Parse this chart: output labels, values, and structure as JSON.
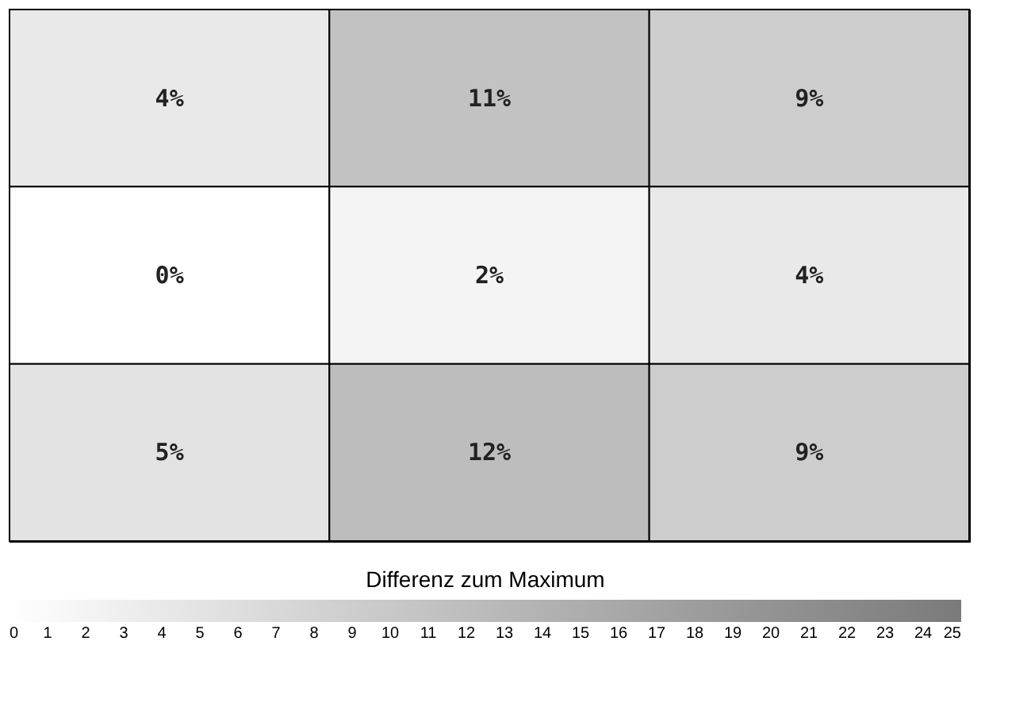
{
  "chart_data": {
    "type": "heatmap",
    "categories": [
      null,
      null,
      null
    ],
    "y_categories": [
      null,
      null,
      null
    ],
    "cells": [
      [
        4,
        11,
        9
      ],
      [
        0,
        2,
        4
      ],
      [
        5,
        12,
        9
      ]
    ],
    "cell_labels": [
      [
        "4%",
        "11%",
        "9%"
      ],
      [
        "0%",
        "2%",
        "4%"
      ],
      [
        "5%",
        "12%",
        "9%"
      ]
    ],
    "clim": [
      0,
      25
    ],
    "cticks": [
      0,
      1,
      2,
      3,
      4,
      5,
      6,
      7,
      8,
      9,
      10,
      11,
      12,
      13,
      14,
      15,
      16,
      17,
      18,
      19,
      20,
      21,
      22,
      23,
      24,
      25
    ],
    "legend_title": "Differenz zum Maximum",
    "tick_labels": false
  }
}
